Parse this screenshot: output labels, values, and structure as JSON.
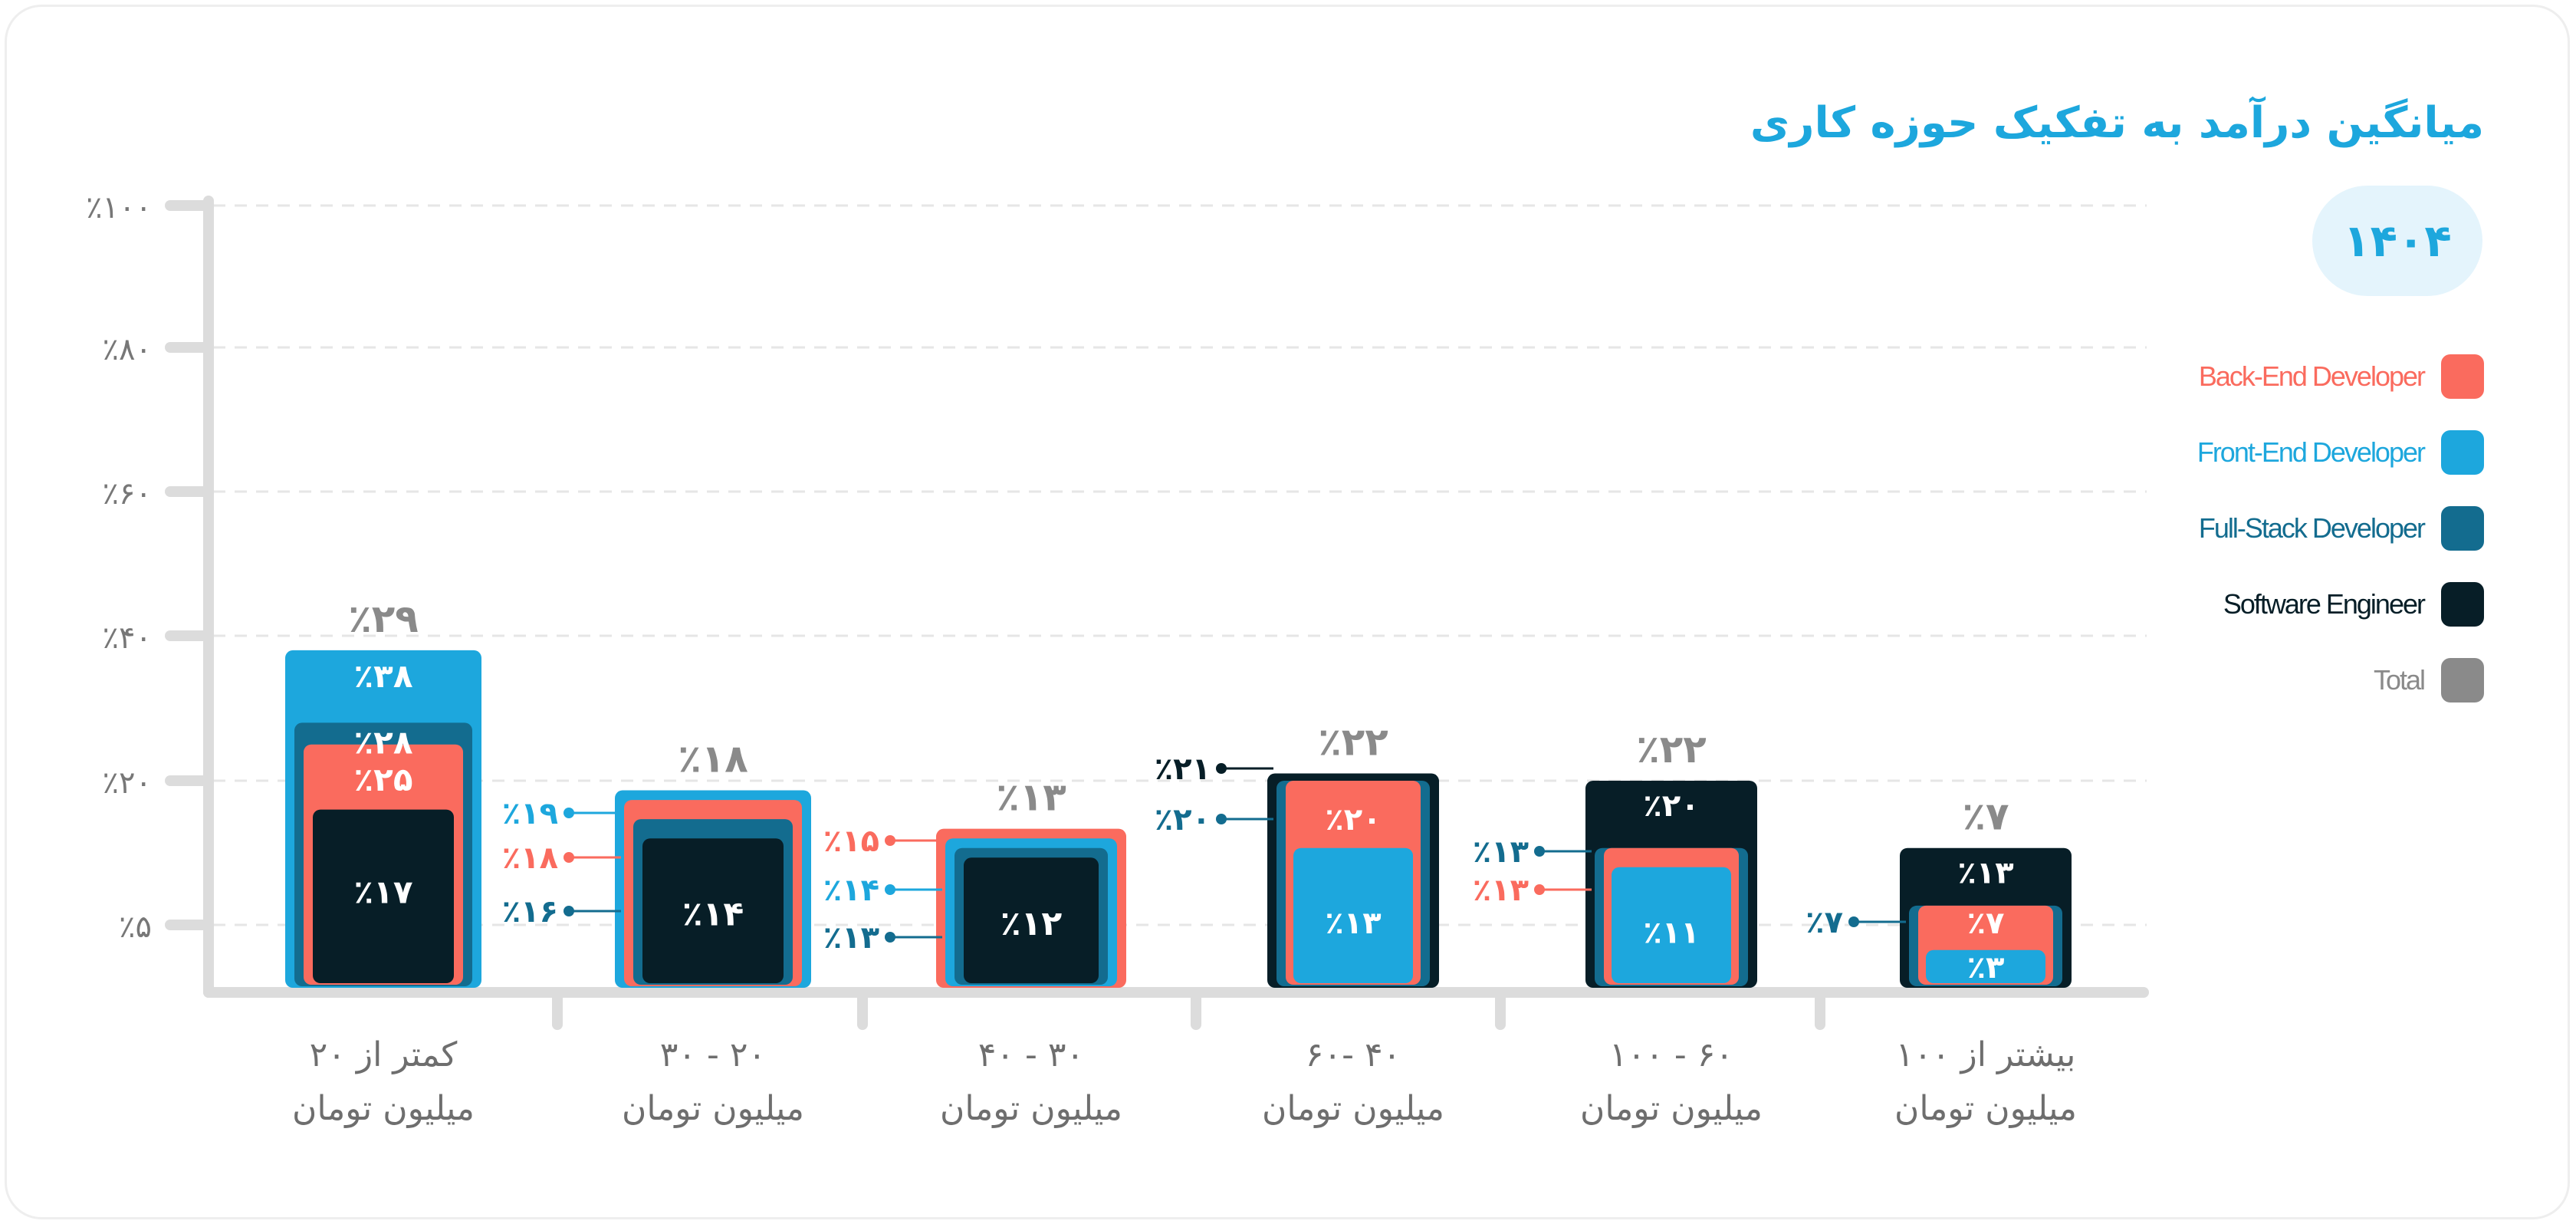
{
  "title": "میانگین درآمد به تفکیک حوزه کاری",
  "year_badge": "۱۴۰۴",
  "colors": {
    "backend": "#fa6b5e",
    "frontend": "#1da7dd",
    "fullstack": "#136c8f",
    "engineer": "#071e27",
    "total": "#8a8a8a",
    "axis": "#dcdcdc",
    "grid": "#e6e6e6",
    "tick_text": "#777777",
    "category_text": "#6e6e6e"
  },
  "legend": [
    {
      "key": "backend",
      "label": "Back-End Developer",
      "color": "#fa6b5e"
    },
    {
      "key": "frontend",
      "label": "Front-End Developer",
      "color": "#1da7dd"
    },
    {
      "key": "fullstack",
      "label": "Full-Stack Developer",
      "color": "#136c8f"
    },
    {
      "key": "engineer",
      "label": "Software Engineer",
      "color": "#071e27"
    },
    {
      "key": "total",
      "label": "Total",
      "color": "#8a8a8a"
    }
  ],
  "chart_data": {
    "type": "bar",
    "title": "میانگین درآمد به تفکیک حوزه کاری",
    "yticks": [
      "٪۱۰۰",
      "٪۸۰",
      "٪۶۰",
      "٪۴۰",
      "٪۲۰",
      "٪۵"
    ],
    "grid": true,
    "legend_position": "right",
    "categories": [
      {
        "line1": "کمتر از ۲۰",
        "line2": "میلیون تومان"
      },
      {
        "line1": "۲۰ - ۳۰",
        "line2": "میلیون تومان"
      },
      {
        "line1": "۳۰ - ۴۰",
        "line2": "میلیون تومان"
      },
      {
        "line1": "۴۰ -۶۰",
        "line2": "میلیون تومان"
      },
      {
        "line1": "۶۰ - ۱۰۰",
        "line2": "میلیون تومان"
      },
      {
        "line1": "بیشتر از ۱۰۰",
        "line2": "میلیون تومان"
      }
    ],
    "series": [
      {
        "name": "Back-End Developer",
        "key": "backend",
        "values": [
          25,
          18,
          15,
          20,
          13,
          7
        ],
        "labels": [
          "٪۲۵",
          "٪۱۸",
          "٪۱۵",
          "٪۲۰",
          "٪۱۳",
          "٪۷"
        ]
      },
      {
        "name": "Front-End Developer",
        "key": "frontend",
        "values": [
          38,
          19,
          14,
          13,
          11,
          3
        ],
        "labels": [
          "٪۳۸",
          "٪۱۹",
          "٪۱۴",
          "٪۱۳",
          "٪۱۱",
          "٪۳"
        ]
      },
      {
        "name": "Full-Stack Developer",
        "key": "fullstack",
        "values": [
          28,
          16,
          13,
          20,
          13,
          7
        ],
        "labels": [
          "٪۲۸",
          "٪۱۶",
          "٪۱۳",
          "٪۲۰",
          "٪۱۳",
          "٪۷"
        ]
      },
      {
        "name": "Software Engineer",
        "key": "engineer",
        "values": [
          17,
          14,
          12,
          21,
          20,
          13
        ],
        "labels": [
          "٪۱۷",
          "٪۱۴",
          "٪۱۲",
          "٪۲۱",
          "٪۲۰",
          "٪۱۳"
        ]
      },
      {
        "name": "Total",
        "key": "total",
        "values": [
          29,
          18,
          13,
          22,
          22,
          7
        ],
        "labels": [
          "٪۲۹",
          "٪۱۸",
          "٪۱۳",
          "٪۲۲",
          "٪۲۲",
          "٪۷"
        ]
      }
    ]
  }
}
